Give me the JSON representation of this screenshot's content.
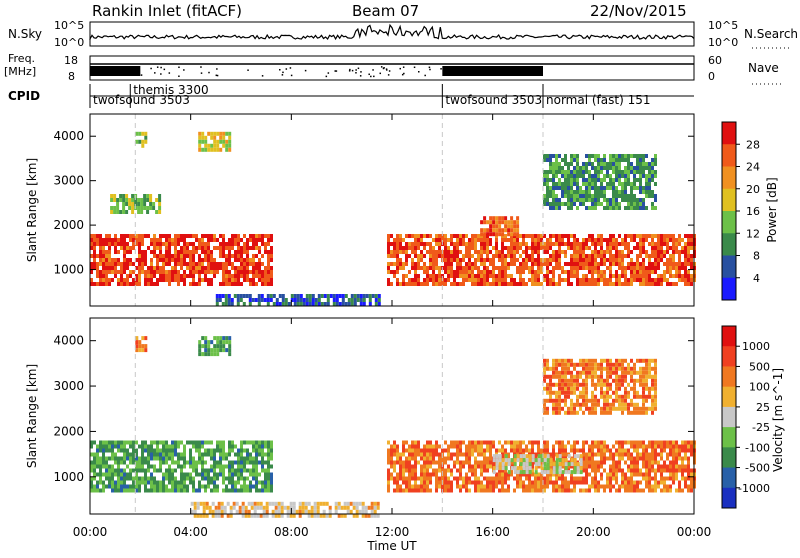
{
  "header": {
    "site": "Rankin Inlet (fitACF)",
    "beam": "Beam 07",
    "date": "22/Nov/2015"
  },
  "top_panels": {
    "nsky_label": "N.Sky",
    "nsky_ticks": [
      "10^5",
      "10^0"
    ],
    "nsearch_label": "N.Search",
    "nsearch_ticks": [
      "10^5",
      "10^0"
    ],
    "freq_label": "Freq.",
    "freq_unit": "[MHz]",
    "freq_ticks": [
      "18",
      "8"
    ],
    "nave_label": "Nave",
    "nave_ticks": [
      "60",
      "0"
    ],
    "cpid_label": "CPID"
  },
  "cpid_segments": [
    {
      "start_hour": 0.0,
      "label": "twofsound 3503"
    },
    {
      "start_hour": 1.6,
      "label": "themis 3300"
    },
    {
      "start_hour": 14.0,
      "label": "twofsound 3503"
    },
    {
      "start_hour": 18.0,
      "label": "normal (fast) 151"
    }
  ],
  "chart_data": [
    {
      "type": "heatmap",
      "name": "power",
      "ylabel": "Slant Range [km]",
      "xlim": [
        0,
        24
      ],
      "ylim": [
        180,
        4500
      ],
      "yticks": [
        1000,
        2000,
        3000,
        4000
      ],
      "colorbar": {
        "label": "Power [dB]",
        "ticks": [
          "4",
          "8",
          "12",
          "16",
          "20",
          "24",
          "28"
        ],
        "colors": [
          "#1a1aff",
          "#2850a0",
          "#3a8a4a",
          "#6cc048",
          "#e0c020",
          "#f09020",
          "#f05a1a",
          "#e01010"
        ]
      },
      "features": [
        {
          "x0": 0.0,
          "x1": 7.2,
          "y0": 700,
          "y1": 1800,
          "level": 0.92
        },
        {
          "x0": 11.8,
          "x1": 24.0,
          "y0": 700,
          "y1": 1800,
          "level": 0.88
        },
        {
          "x0": 15.5,
          "x1": 17.0,
          "y0": 1800,
          "y1": 2200,
          "level": 0.85
        },
        {
          "x0": 0.8,
          "x1": 2.8,
          "y0": 2300,
          "y1": 2700,
          "level": 0.4
        },
        {
          "x0": 1.8,
          "x1": 2.2,
          "y0": 3800,
          "y1": 4100,
          "level": 0.45
        },
        {
          "x0": 4.3,
          "x1": 5.6,
          "y0": 3700,
          "y1": 4100,
          "level": 0.55
        },
        {
          "x0": 18.0,
          "x1": 22.5,
          "y0": 2400,
          "y1": 3600,
          "level": 0.3
        },
        {
          "x0": 5.0,
          "x1": 11.5,
          "y0": 180,
          "y1": 450,
          "level": 0.15
        }
      ]
    },
    {
      "type": "heatmap",
      "name": "velocity",
      "xlabel": "Time UT",
      "ylabel": "Slant Range [km]",
      "xlim": [
        0,
        24
      ],
      "ylim": [
        180,
        4500
      ],
      "xticks": [
        "00:00",
        "04:00",
        "08:00",
        "12:00",
        "16:00",
        "20:00",
        "00:00"
      ],
      "yticks": [
        1000,
        2000,
        3000,
        4000
      ],
      "colorbar": {
        "label": "Velocity [m s^-1]",
        "ticks": [
          "1000",
          "500",
          "100",
          "25",
          "-25",
          "-100",
          "-500",
          "-1000"
        ],
        "colors": [
          "#1a30c0",
          "#2860a8",
          "#3a8a4a",
          "#6cc048",
          "#c8c8c8",
          "#f0b030",
          "#f07820",
          "#f04020",
          "#e01010"
        ]
      },
      "features": [
        {
          "x0": 0.0,
          "x1": 7.2,
          "y0": 700,
          "y1": 1800,
          "level": 0.3
        },
        {
          "x0": 11.8,
          "x1": 24.0,
          "y0": 700,
          "y1": 1800,
          "level": 0.78
        },
        {
          "x0": 16.0,
          "x1": 19.5,
          "y0": 1100,
          "y1": 1500,
          "level": 0.5
        },
        {
          "x0": 1.8,
          "x1": 2.2,
          "y0": 3800,
          "y1": 4100,
          "level": 0.75
        },
        {
          "x0": 4.3,
          "x1": 5.6,
          "y0": 3700,
          "y1": 4100,
          "level": 0.3
        },
        {
          "x0": 18.0,
          "x1": 22.5,
          "y0": 2400,
          "y1": 3600,
          "level": 0.75
        },
        {
          "x0": 4.0,
          "x1": 11.5,
          "y0": 180,
          "y1": 450,
          "level": 0.6
        }
      ]
    }
  ]
}
